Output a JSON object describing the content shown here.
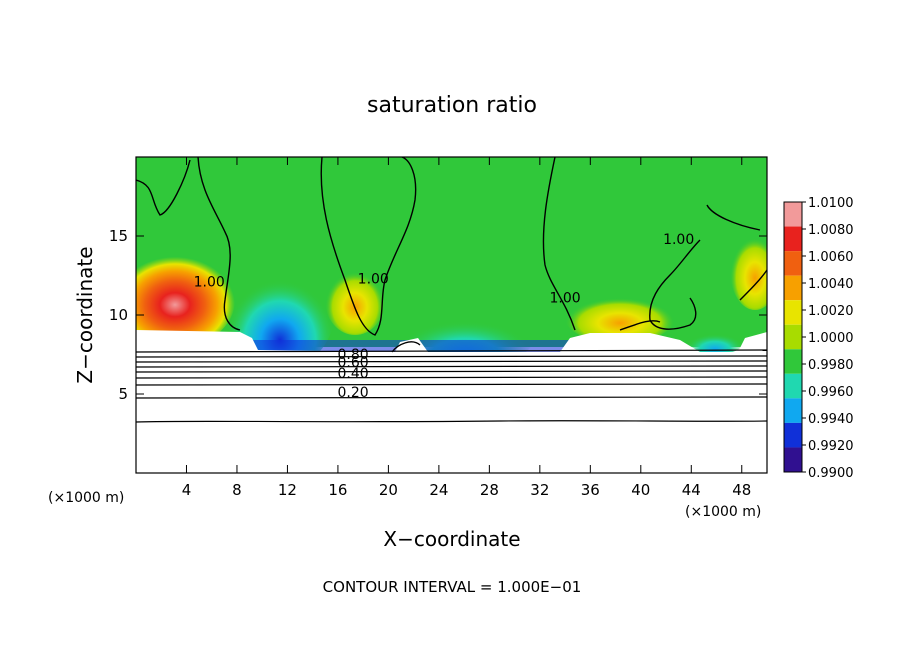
{
  "chart_data": {
    "type": "heatmap",
    "title": "saturation ratio",
    "xlabel": "X−coordinate",
    "ylabel": "Z−coordinate",
    "x_unit_label_left": "(×1000 m)",
    "x_unit_label_right": "(×1000 m)",
    "footer": "CONTOUR INTERVAL = 1.000E−01",
    "xlim": [
      0,
      50
    ],
    "ylim": [
      0,
      20
    ],
    "x_ticks": [
      4,
      8,
      12,
      16,
      20,
      24,
      28,
      32,
      36,
      40,
      44,
      48
    ],
    "y_ticks": [
      5,
      10,
      15
    ],
    "colorbar": {
      "levels": [
        "1.0100",
        "1.0080",
        "1.0060",
        "1.0040",
        "1.0020",
        "1.0000",
        "0.9980",
        "0.9960",
        "0.9940",
        "0.9920",
        "0.9900"
      ],
      "colors": [
        "#f29a9a",
        "#e8221e",
        "#f06010",
        "#f7a000",
        "#e8e400",
        "#a8dc00",
        "#30c83a",
        "#20d8b0",
        "#10a8f0",
        "#1030d8",
        "#301090"
      ]
    },
    "contour_labels": [
      {
        "text": "1.00",
        "x": 5.8,
        "y": 11.8
      },
      {
        "text": "1.00",
        "x": 18.8,
        "y": 12.0
      },
      {
        "text": "1.00",
        "x": 34.0,
        "y": 10.8
      },
      {
        "text": "1.00",
        "x": 43.0,
        "y": 14.5
      },
      {
        "text": "0.80",
        "x": 17.2,
        "y": 7.2
      },
      {
        "text": "0.60",
        "x": 17.2,
        "y": 6.7
      },
      {
        "text": "0.40",
        "x": 17.2,
        "y": 6.0
      },
      {
        "text": "0.20",
        "x": 17.2,
        "y": 4.8
      }
    ],
    "grid": false,
    "legend": "colorbar-right"
  }
}
